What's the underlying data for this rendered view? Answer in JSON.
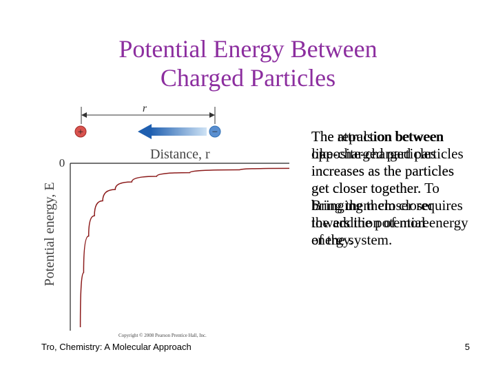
{
  "slide": {
    "title_line1": "Potential Energy Between",
    "title_line2": "Charged Particles",
    "text_attraction": "The attraction between opposite-charged particles increases as the particles get closer together. Bringing them closer lowers the potential energy of the system.",
    "text_repulsion": "The repulsion between like-charged particles increases as the particles get closer together. To bring them closer requires the addition of more energy.",
    "footer": "Tro, Chemistry: A Molecular Approach",
    "page_number": "5"
  },
  "figure": {
    "distance_symbol": "r",
    "plus_sign": "+",
    "minus_sign": "−",
    "x_axis_label": "Distance, r",
    "y_axis_label": "Potential energy, E",
    "zero_label": "0",
    "copyright": "Copyright © 2008 Pearson Prentice Hall, Inc.",
    "colors": {
      "arrow": "#2a78c8",
      "plus": "#c0392b",
      "minus": "#2e6fb5",
      "title": "#8c2e9f"
    }
  },
  "chart_data": {
    "type": "line",
    "xlabel": "Distance, r",
    "ylabel": "Potential energy, E",
    "y_zero_label": "0",
    "series": [
      {
        "x": [
          0.08,
          0.12,
          0.18,
          0.25,
          0.35,
          0.5,
          0.7,
          1.0,
          1.4,
          2.0,
          2.6
        ],
        "y": [
          -1.0,
          -0.667,
          -0.444,
          -0.32,
          -0.229,
          -0.16,
          -0.114,
          -0.08,
          -0.057,
          -0.04,
          -0.031
        ]
      }
    ]
  }
}
